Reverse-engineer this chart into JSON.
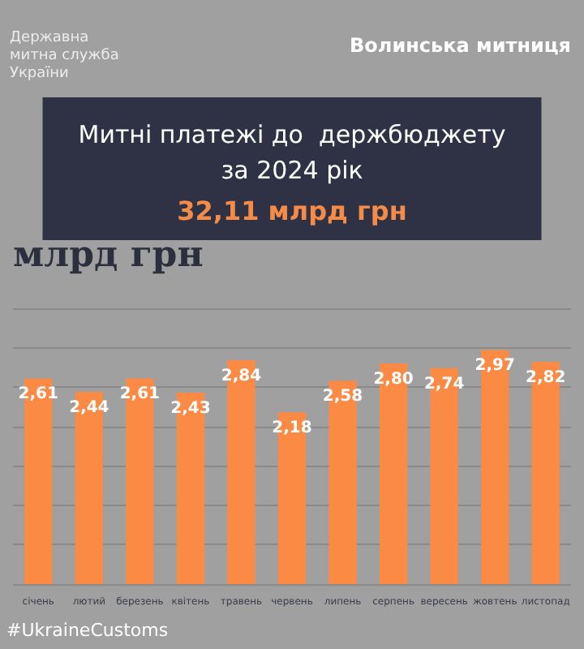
{
  "chart_data": {
    "type": "bar",
    "title": "Митні платежі до  держбюджету\nза 2024 рік",
    "subtitle": "32,11 млрд грн",
    "ylabel": "млрд грн",
    "annotations": [
      "Державна\nмитна служба\nУкраїни",
      "Волинська митниця",
      "#UkraineCustoms"
    ],
    "categories": [
      "січень",
      "лютий",
      "березень",
      "квітень",
      "травень",
      "червень",
      "липень",
      "серпень",
      "вересень",
      "жовтень",
      "листопад"
    ],
    "values": [
      2.61,
      2.44,
      2.61,
      2.43,
      2.84,
      2.18,
      2.58,
      2.8,
      2.74,
      2.97,
      2.82
    ],
    "value_labels": [
      "2,61",
      "2,44",
      "2,61",
      "2,43",
      "2,84",
      "2,18",
      "2,58",
      "2,80",
      "2,74",
      "2,97",
      "2,82"
    ],
    "color": "#fb8a45",
    "ylim": [
      0,
      3.5
    ],
    "yticks": [
      {
        "value": 0,
        "label": null
      },
      {
        "value": 0.5,
        "label": null
      },
      {
        "value": 1,
        "label": null
      },
      {
        "value": 1.5,
        "label": null
      },
      {
        "value": 2,
        "label": null
      },
      {
        "value": 2.5,
        "label": null
      },
      {
        "value": 3,
        "label": null
      },
      {
        "value": 3.5,
        "label": null
      }
    ],
    "tick_labels": "x",
    "grid": "y"
  }
}
